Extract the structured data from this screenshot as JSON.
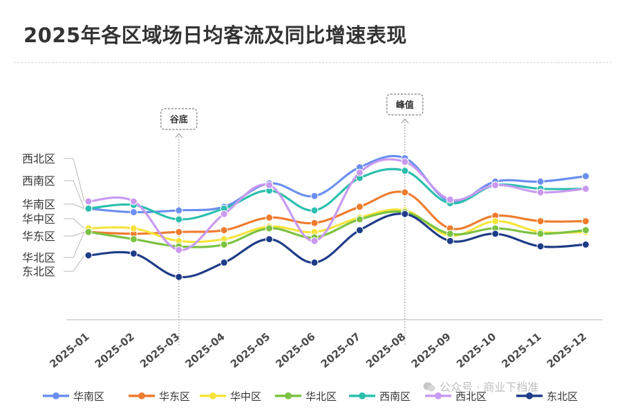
{
  "title": "2025年各区域场日均客流及同比增速表现",
  "watermark": "公众号 · 商业下档准",
  "chart_data": {
    "type": "line",
    "title": "2025年各区域场日均客流及同比增速表现",
    "categories": [
      "2025-01",
      "2025-02",
      "2025-03",
      "2025-04",
      "2025-05",
      "2025-06",
      "2025-07",
      "2025-08",
      "2025-09",
      "2025-10",
      "2025-11",
      "2025-12"
    ],
    "ylim": [
      0,
      100
    ],
    "grid": false,
    "legend_position": "bottom",
    "series": [
      {
        "name": "华南区",
        "color": "#6b8ff0",
        "values": [
          61,
          59,
          60,
          62,
          75,
          68,
          84,
          89,
          65,
          76,
          76,
          79
        ]
      },
      {
        "name": "华东区",
        "color": "#ee7c2e",
        "values": [
          48,
          47,
          48,
          49,
          56,
          53,
          62,
          70,
          50,
          57,
          54,
          54
        ]
      },
      {
        "name": "华中区",
        "color": "#f5e43b",
        "values": [
          50,
          50,
          43,
          44,
          51,
          48,
          56,
          60,
          46,
          54,
          48,
          48
        ]
      },
      {
        "name": "华北区",
        "color": "#7cc242",
        "values": [
          48,
          44,
          40,
          41,
          50,
          45,
          55,
          59,
          47,
          50,
          47,
          49
        ]
      },
      {
        "name": "西南区",
        "color": "#2cbfae",
        "values": [
          61,
          63,
          55,
          61,
          71,
          60,
          78,
          82,
          64,
          74,
          72,
          72
        ]
      },
      {
        "name": "西北区",
        "color": "#c99af0",
        "values": [
          65,
          65,
          38,
          58,
          74,
          43,
          81,
          87,
          66,
          74,
          70,
          72
        ]
      },
      {
        "name": "东北区",
        "color": "#1f3c88",
        "values": [
          35,
          36,
          23,
          31,
          44,
          31,
          49,
          58,
          43,
          47,
          40,
          41
        ]
      }
    ],
    "annotations": [
      {
        "label": "谷底",
        "category": "2025-03"
      },
      {
        "label": "峰值",
        "category": "2025-08"
      }
    ],
    "left_labels": [
      {
        "text": "西北区",
        "series": "西北区"
      },
      {
        "text": "西南区",
        "series": "西南区"
      },
      {
        "text": "华南区",
        "series": "华南区"
      },
      {
        "text": "华中区",
        "series": "华中区"
      },
      {
        "text": "华东区",
        "series": "华东区"
      },
      {
        "text": "华北区",
        "series": "华北区"
      },
      {
        "text": "东北区",
        "series": "东北区"
      }
    ]
  }
}
